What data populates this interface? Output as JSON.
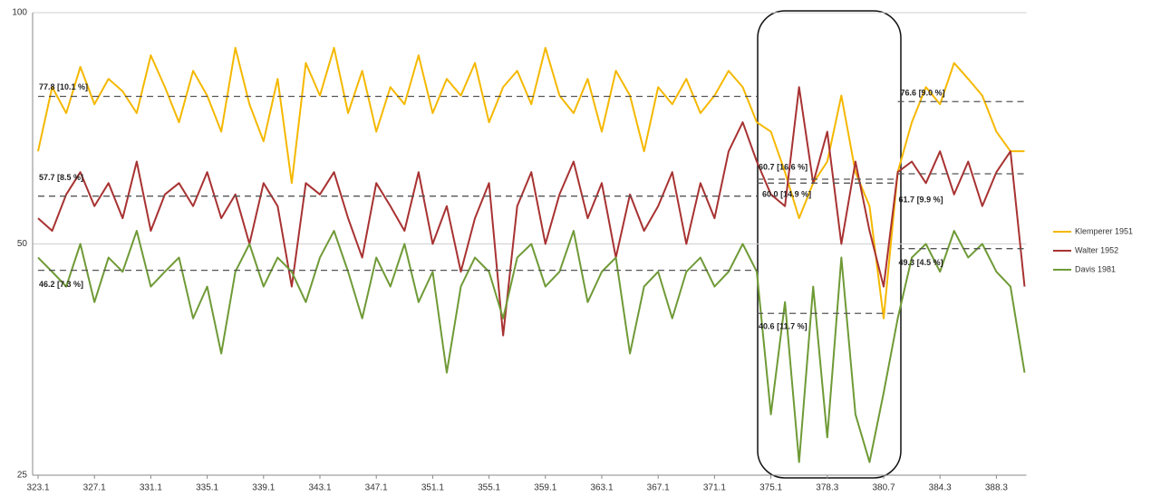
{
  "chart_data": {
    "type": "line",
    "categories": [
      "323.1",
      null,
      null,
      null,
      "327.1",
      null,
      null,
      null,
      "331.1",
      null,
      null,
      null,
      "335.1",
      null,
      null,
      null,
      "339.1",
      null,
      null,
      null,
      "343.1",
      null,
      null,
      null,
      "347.1",
      null,
      null,
      null,
      "351.1",
      null,
      null,
      null,
      "355.1",
      null,
      null,
      null,
      "359.1",
      null,
      null,
      null,
      "363.1",
      null,
      null,
      null,
      "367.1",
      null,
      null,
      null,
      "371.1",
      null,
      null,
      null,
      "375.1",
      null,
      null,
      null,
      "378.3",
      null,
      null,
      null,
      "380.7",
      null,
      null,
      null,
      "384.3",
      null,
      null,
      null,
      "388.3",
      null,
      null
    ],
    "series": [
      {
        "name": "Klemperer 1951",
        "color": "#f5b800",
        "values": [
          66,
          80,
          74,
          85,
          76,
          82,
          79,
          74,
          88,
          80,
          72,
          84,
          78,
          70,
          90,
          76,
          68,
          82,
          60,
          86,
          78,
          90,
          74,
          84,
          70,
          80,
          76,
          88,
          74,
          82,
          78,
          86,
          72,
          80,
          84,
          76,
          90,
          78,
          74,
          82,
          70,
          84,
          78,
          66,
          80,
          76,
          82,
          74,
          78,
          84,
          80,
          72,
          70,
          62,
          54,
          60,
          64,
          78,
          62,
          56,
          40,
          62,
          72,
          80,
          76,
          86,
          82,
          78,
          70,
          66,
          66
        ]
      },
      {
        "name": "Walter 1952",
        "color": "#a83232",
        "values": [
          54,
          52,
          58,
          62,
          56,
          60,
          54,
          64,
          52,
          58,
          60,
          56,
          62,
          54,
          58,
          50,
          60,
          56,
          44,
          60,
          58,
          62,
          54,
          48,
          60,
          56,
          52,
          62,
          50,
          56,
          46,
          54,
          60,
          38,
          56,
          62,
          50,
          58,
          64,
          54,
          60,
          48,
          58,
          52,
          56,
          62,
          50,
          60,
          54,
          66,
          72,
          64,
          58,
          56,
          80,
          60,
          70,
          50,
          64,
          52,
          44,
          62,
          64,
          60,
          66,
          58,
          64,
          56,
          62,
          66,
          44
        ]
      },
      {
        "name": "Davis 1981",
        "color": "#6f9a36",
        "values": [
          48,
          46,
          44,
          50,
          42,
          48,
          46,
          52,
          44,
          46,
          48,
          40,
          44,
          36,
          46,
          50,
          44,
          48,
          46,
          42,
          48,
          52,
          46,
          40,
          48,
          44,
          50,
          42,
          46,
          34,
          44,
          48,
          46,
          40,
          48,
          50,
          44,
          46,
          52,
          42,
          46,
          48,
          36,
          44,
          46,
          40,
          46,
          48,
          44,
          46,
          50,
          46,
          30,
          42,
          26,
          44,
          28,
          48,
          30,
          26,
          32,
          40,
          48,
          50,
          46,
          52,
          48,
          50,
          46,
          44,
          34
        ]
      }
    ],
    "annotations": [
      {
        "label": "77.8 [10.1 %]",
        "value": 77.8
      },
      {
        "label": "57.7 [8.5 %]",
        "value": 57.7
      },
      {
        "label": "46.2 [7.3 %]",
        "value": 46.2
      },
      {
        "label": "60.7 [16.6 %]",
        "value": 60.7
      },
      {
        "label": "60.0 [14.9 %]",
        "value": 60.0
      },
      {
        "label": "40.6 [11.7 %]",
        "value": 40.6
      },
      {
        "label": "76.6 [9.0 %]",
        "value": 76.6
      },
      {
        "label": "61.7 [9.9 %]",
        "value": 61.7
      },
      {
        "label": "49.3 [4.5 %]",
        "value": 49.3
      }
    ],
    "ylim": [
      25,
      100
    ],
    "yticks": [
      25,
      50,
      100
    ],
    "log_y": true,
    "grid": true,
    "legend": "right"
  }
}
